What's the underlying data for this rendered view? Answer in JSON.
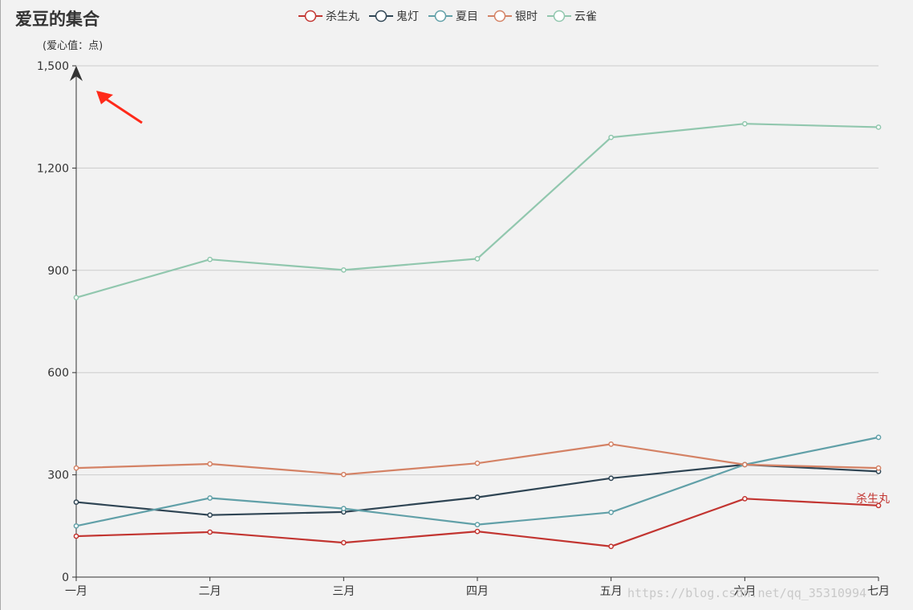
{
  "chart_data": {
    "type": "line",
    "title": "爱豆的集合",
    "subtitle": "(爱心值：点)",
    "categories": [
      "一月",
      "二月",
      "三月",
      "四月",
      "五月",
      "六月",
      "七月"
    ],
    "ylim": [
      0,
      1500
    ],
    "yticks": [
      0,
      300,
      600,
      900,
      1200,
      1500
    ],
    "ytick_labels": [
      "0",
      "300",
      "600",
      "900",
      "1,200",
      "1,500"
    ],
    "grid": "horizontal",
    "legend_position": "top-center",
    "series": [
      {
        "name": "杀生丸",
        "color": "#c23531",
        "values": [
          120,
          132,
          101,
          134,
          90,
          230,
          210
        ]
      },
      {
        "name": "鬼灯",
        "color": "#2f4554",
        "values": [
          220,
          182,
          191,
          234,
          290,
          330,
          310
        ]
      },
      {
        "name": "夏目",
        "color": "#61a0a8",
        "values": [
          150,
          232,
          201,
          154,
          190,
          330,
          410
        ]
      },
      {
        "name": "银时",
        "color": "#d48265",
        "values": [
          320,
          332,
          301,
          334,
          390,
          330,
          320
        ]
      },
      {
        "name": "云雀",
        "color": "#91c7ae",
        "values": [
          820,
          932,
          901,
          934,
          1290,
          1330,
          1320
        ]
      }
    ],
    "end_label": {
      "series": "杀生丸",
      "text": "杀生丸"
    },
    "annotation": "red-arrow-pointing-to-y-axis-top"
  },
  "watermark": "https://blog.csdn.net/qq_35310994"
}
